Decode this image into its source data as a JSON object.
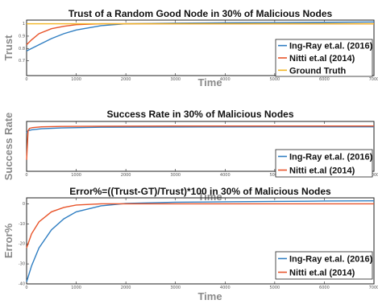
{
  "chart_data": [
    {
      "type": "line",
      "title": "Trust of a Random Good Node in 30% of Malicious Nodes",
      "xlabel": "Time",
      "ylabel": "Trust",
      "xlim": [
        0,
        7000
      ],
      "ylim": [
        0.58,
        1.03
      ],
      "xticks": [
        "0",
        "1000",
        "2000",
        "3000",
        "4000",
        "5000",
        "6000",
        "7000"
      ],
      "yticks": [
        "0.7",
        "0.8",
        "0.9",
        "1"
      ],
      "legend_position": "right",
      "series": [
        {
          "name": "Ing-Ray et.al. (2016)",
          "color": "#2f7ec2",
          "x": [
            0,
            100,
            250,
            500,
            750,
            1000,
            1500,
            2000,
            3000,
            4000,
            5000,
            6000,
            7000
          ],
          "y": [
            0.78,
            0.8,
            0.83,
            0.88,
            0.92,
            0.95,
            0.985,
            1.0,
            1.005,
            1.008,
            1.01,
            1.012,
            1.015
          ]
        },
        {
          "name": "Nitti et.al (2014)",
          "color": "#e8542a",
          "x": [
            0,
            100,
            250,
            500,
            750,
            1000,
            1500,
            2000,
            3000,
            4000,
            5000,
            6000,
            7000
          ],
          "y": [
            0.83,
            0.87,
            0.92,
            0.96,
            0.98,
            0.993,
            1.0,
            1.0,
            1.0,
            1.0,
            1.0,
            1.0,
            1.0
          ]
        },
        {
          "name": "Ground Truth",
          "color": "#f2b522",
          "x": [
            0,
            7000
          ],
          "y": [
            1.0,
            1.0
          ]
        }
      ]
    },
    {
      "type": "line",
      "title": "Success Rate in 30% of Malicious Nodes",
      "xlabel": "Time",
      "ylabel": "Success Rate",
      "xlim": [
        0,
        7000
      ],
      "ylim": [
        0.4,
        1.05
      ],
      "xticks": [
        "0",
        "1000",
        "2000",
        "3000",
        "4000",
        "5000",
        "6000",
        "7000"
      ],
      "yticks": [],
      "legend_position": "right",
      "series": [
        {
          "name": "Ing-Ray et.al. (2016)",
          "color": "#2f7ec2",
          "x": [
            0,
            30,
            100,
            300,
            700,
            1500,
            3000,
            5000,
            7000
          ],
          "y": [
            0.9,
            0.93,
            0.94,
            0.955,
            0.965,
            0.975,
            0.978,
            0.98,
            0.98
          ]
        },
        {
          "name": "Nitti et.al (2014)",
          "color": "#e8542a",
          "x": [
            0,
            30,
            60,
            120,
            300,
            700,
            1500,
            3000,
            5000,
            7000
          ],
          "y": [
            0.55,
            0.93,
            0.96,
            0.97,
            0.98,
            0.985,
            0.988,
            0.99,
            0.99,
            0.99
          ]
        }
      ]
    },
    {
      "type": "line",
      "title": "Error%=((Trust-GT)/Trust)*100 in 30% of Malicious Nodes",
      "xlabel": "Time",
      "ylabel": "Error%",
      "xlim": [
        0,
        7000
      ],
      "ylim": [
        -40,
        3
      ],
      "xticks": [
        "0",
        "1000",
        "2000",
        "3000",
        "4000",
        "5000",
        "6000",
        "7000"
      ],
      "yticks": [
        "-40",
        "-30",
        "-20",
        "-10",
        "0"
      ],
      "legend_position": "right",
      "series": [
        {
          "name": "Ing-Ray et.al. (2016)",
          "color": "#2f7ec2",
          "x": [
            0,
            100,
            250,
            500,
            750,
            1000,
            1500,
            2000,
            3000,
            4000,
            5000,
            6000,
            7000
          ],
          "y": [
            -39,
            -31,
            -22,
            -13,
            -7.5,
            -4,
            -1,
            0.2,
            0.8,
            1.0,
            1.2,
            1.4,
            1.5
          ]
        },
        {
          "name": "Nitti et.al (2014)",
          "color": "#e8542a",
          "x": [
            0,
            100,
            250,
            500,
            750,
            1000,
            1500,
            2000,
            3000,
            4000,
            5000,
            6000,
            7000
          ],
          "y": [
            -22,
            -15,
            -9,
            -4,
            -1.8,
            -0.6,
            0,
            0,
            0,
            0,
            0,
            0,
            0
          ]
        }
      ]
    }
  ]
}
